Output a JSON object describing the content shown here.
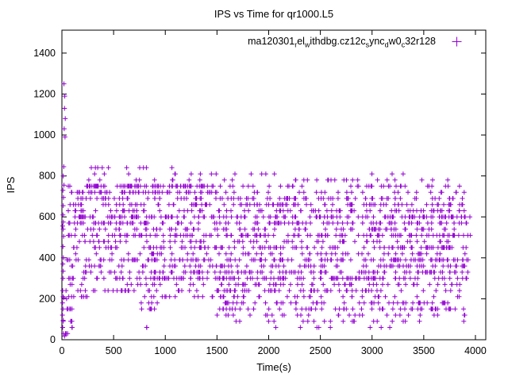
{
  "chart_data": {
    "type": "scatter",
    "title": "IPS vs Time for qr1000.L5",
    "xlabel": "Time(s)",
    "ylabel": "IPS",
    "xlim": [
      0,
      4100
    ],
    "ylim": [
      0,
      1512
    ],
    "xticks": [
      0,
      500,
      1000,
      1500,
      2000,
      2500,
      3000,
      3500,
      4000
    ],
    "yticks": [
      0,
      200,
      400,
      600,
      800,
      1000,
      1200,
      1400
    ],
    "grid": false,
    "legend_position": "top-right-inside",
    "marker": {
      "shape": "plus",
      "color": "#9400d3",
      "size": 7
    },
    "series": [
      {
        "name_segments": [
          {
            "t": "ma120301"
          },
          {
            "t": "r",
            "sub": true
          },
          {
            "t": "el"
          },
          {
            "t": "w",
            "sub": true
          },
          {
            "t": "ithdbg.cz12c"
          },
          {
            "t": "s",
            "sub": true
          },
          {
            "t": "ync"
          },
          {
            "t": "d",
            "sub": true
          },
          {
            "t": "w0"
          },
          {
            "t": "c",
            "sub": true
          },
          {
            "t": "32r128"
          }
        ],
        "bands": [
          {
            "y": 840,
            "x0": 80,
            "x1": 1700,
            "n": 10
          },
          {
            "y": 810,
            "x0": 100,
            "x1": 3450,
            "n": 18
          },
          {
            "y": 780,
            "x0": 150,
            "x1": 3900,
            "n": 30
          },
          {
            "y": 750,
            "x0": 60,
            "x1": 1500,
            "n": 80
          },
          {
            "y": 750,
            "x0": 1500,
            "x1": 3900,
            "n": 35
          },
          {
            "y": 720,
            "x0": 60,
            "x1": 1500,
            "n": 60
          },
          {
            "y": 720,
            "x0": 1500,
            "x1": 3900,
            "n": 25
          },
          {
            "y": 690,
            "x0": 60,
            "x1": 3920,
            "n": 90
          },
          {
            "y": 660,
            "x0": 50,
            "x1": 3930,
            "n": 100
          },
          {
            "y": 630,
            "x0": 60,
            "x1": 3900,
            "n": 90
          },
          {
            "y": 600,
            "x0": 40,
            "x1": 3950,
            "n": 150
          },
          {
            "y": 570,
            "x0": 50,
            "x1": 3930,
            "n": 110
          },
          {
            "y": 540,
            "x0": 60,
            "x1": 3920,
            "n": 80
          },
          {
            "y": 510,
            "x0": 40,
            "x1": 3950,
            "n": 130
          },
          {
            "y": 480,
            "x0": 80,
            "x1": 3900,
            "n": 60
          },
          {
            "y": 450,
            "x0": 50,
            "x1": 3930,
            "n": 110
          },
          {
            "y": 420,
            "x0": 80,
            "x1": 3900,
            "n": 60
          },
          {
            "y": 390,
            "x0": 40,
            "x1": 3950,
            "n": 130
          },
          {
            "y": 360,
            "x0": 60,
            "x1": 3920,
            "n": 90
          },
          {
            "y": 330,
            "x0": 50,
            "x1": 3930,
            "n": 110
          },
          {
            "y": 300,
            "x0": 40,
            "x1": 3950,
            "n": 140
          },
          {
            "y": 270,
            "x0": 60,
            "x1": 1500,
            "n": 15
          },
          {
            "y": 270,
            "x0": 1500,
            "x1": 3900,
            "n": 50
          },
          {
            "y": 240,
            "x0": 50,
            "x1": 3920,
            "n": 80
          },
          {
            "y": 210,
            "x0": 0,
            "x1": 250,
            "n": 10
          },
          {
            "y": 210,
            "x0": 750,
            "x1": 3900,
            "n": 45
          },
          {
            "y": 180,
            "x0": 750,
            "x1": 1000,
            "n": 4
          },
          {
            "y": 180,
            "x0": 1500,
            "x1": 3900,
            "n": 50
          },
          {
            "y": 150,
            "x0": 0,
            "x1": 150,
            "n": 5
          },
          {
            "y": 150,
            "x0": 750,
            "x1": 1000,
            "n": 6
          },
          {
            "y": 150,
            "x0": 1500,
            "x1": 3920,
            "n": 55
          },
          {
            "y": 120,
            "x0": 1500,
            "x1": 3900,
            "n": 28
          },
          {
            "y": 90,
            "x0": 0,
            "x1": 100,
            "n": 4
          },
          {
            "y": 90,
            "x0": 1600,
            "x1": 3900,
            "n": 20
          },
          {
            "y": 60,
            "x0": 0,
            "x1": 100,
            "n": 3
          },
          {
            "y": 60,
            "x0": 780,
            "x1": 830,
            "n": 2
          },
          {
            "y": 60,
            "x0": 1600,
            "x1": 3800,
            "n": 8
          },
          {
            "y": 30,
            "x0": 0,
            "x1": 60,
            "n": 3
          }
        ],
        "outlier_points": [
          [
            20,
            1250
          ],
          [
            28,
            1190
          ],
          [
            25,
            1130
          ],
          [
            32,
            1080
          ],
          [
            22,
            1030
          ],
          [
            30,
            990
          ],
          [
            18,
            845
          ],
          [
            12,
            800
          ],
          [
            20,
            755
          ],
          [
            10,
            730
          ],
          [
            15,
            695
          ],
          [
            12,
            655
          ],
          [
            10,
            610
          ],
          [
            14,
            575
          ],
          [
            8,
            555
          ],
          [
            12,
            540
          ],
          [
            16,
            505
          ],
          [
            10,
            455
          ],
          [
            14,
            400
          ],
          [
            9,
            370
          ],
          [
            12,
            335
          ],
          [
            10,
            300
          ],
          [
            8,
            240
          ],
          [
            15,
            205
          ],
          [
            10,
            150
          ],
          [
            12,
            95
          ],
          [
            8,
            60
          ],
          [
            15,
            30
          ],
          [
            25,
            18
          ],
          [
            5,
            120
          ],
          [
            6,
            180
          ],
          [
            40,
            240
          ],
          [
            45,
            200
          ]
        ]
      }
    ]
  }
}
